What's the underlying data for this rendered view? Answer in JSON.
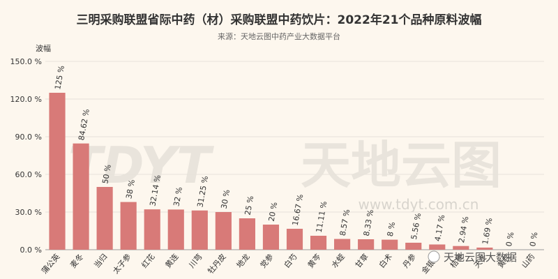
{
  "chart_data": {
    "type": "bar",
    "title": "三明采购联盟省际中药（材）采购联盟中药饮片：2022年21个品种原料波幅",
    "subtitle": "来源：天地云图中药产业大数据平台",
    "ylabel": "波幅",
    "xlabel": "",
    "ylim": [
      0,
      150
    ],
    "yticks": [
      "0.0 %",
      "30.0 %",
      "60.0 %",
      "90.0 %",
      "120.0 %",
      "150.0 %"
    ],
    "categories": [
      "蒲公英",
      "麦冬",
      "当归",
      "太子参",
      "红花",
      "黄连",
      "川芎",
      "牡丹皮",
      "地龙",
      "党参",
      "白芍",
      "黄芩",
      "水蛭",
      "甘草",
      "白术",
      "丹参",
      "金银花",
      "桔梗",
      "天冬",
      "黄芪",
      "山药"
    ],
    "values": [
      125,
      84.62,
      50,
      38,
      32.14,
      32,
      31.25,
      30,
      25,
      20,
      16.67,
      11.11,
      8.57,
      8.33,
      8,
      5.56,
      4.17,
      2.94,
      1.69,
      0,
      0
    ],
    "data_labels": [
      "125 %",
      "84.62 %",
      "50 %",
      "38 %",
      "32.14 %",
      "32 %",
      "31.25 %",
      "30 %",
      "25 %",
      "20 %",
      "16.67 %",
      "11.11 %",
      "8.57 %",
      "8.33 %",
      "8 %",
      "5.56 %",
      "4.17 %",
      "2.94 %",
      "1.69 %",
      "0 %",
      "0 %"
    ],
    "bar_color": "#d87a78",
    "grid": true,
    "watermark": {
      "logo": "TDYT",
      "name": "天地云图",
      "url": "www.tdyt.com.cn",
      "tag": "天地云图大数据"
    }
  }
}
